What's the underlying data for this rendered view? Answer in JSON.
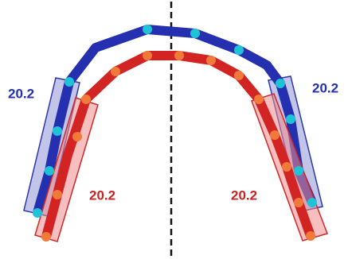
{
  "labels": [
    {
      "text": "20.2"
    },
    {
      "text": "20.2"
    },
    {
      "text": "20.2"
    },
    {
      "text": "20.2"
    }
  ]
}
